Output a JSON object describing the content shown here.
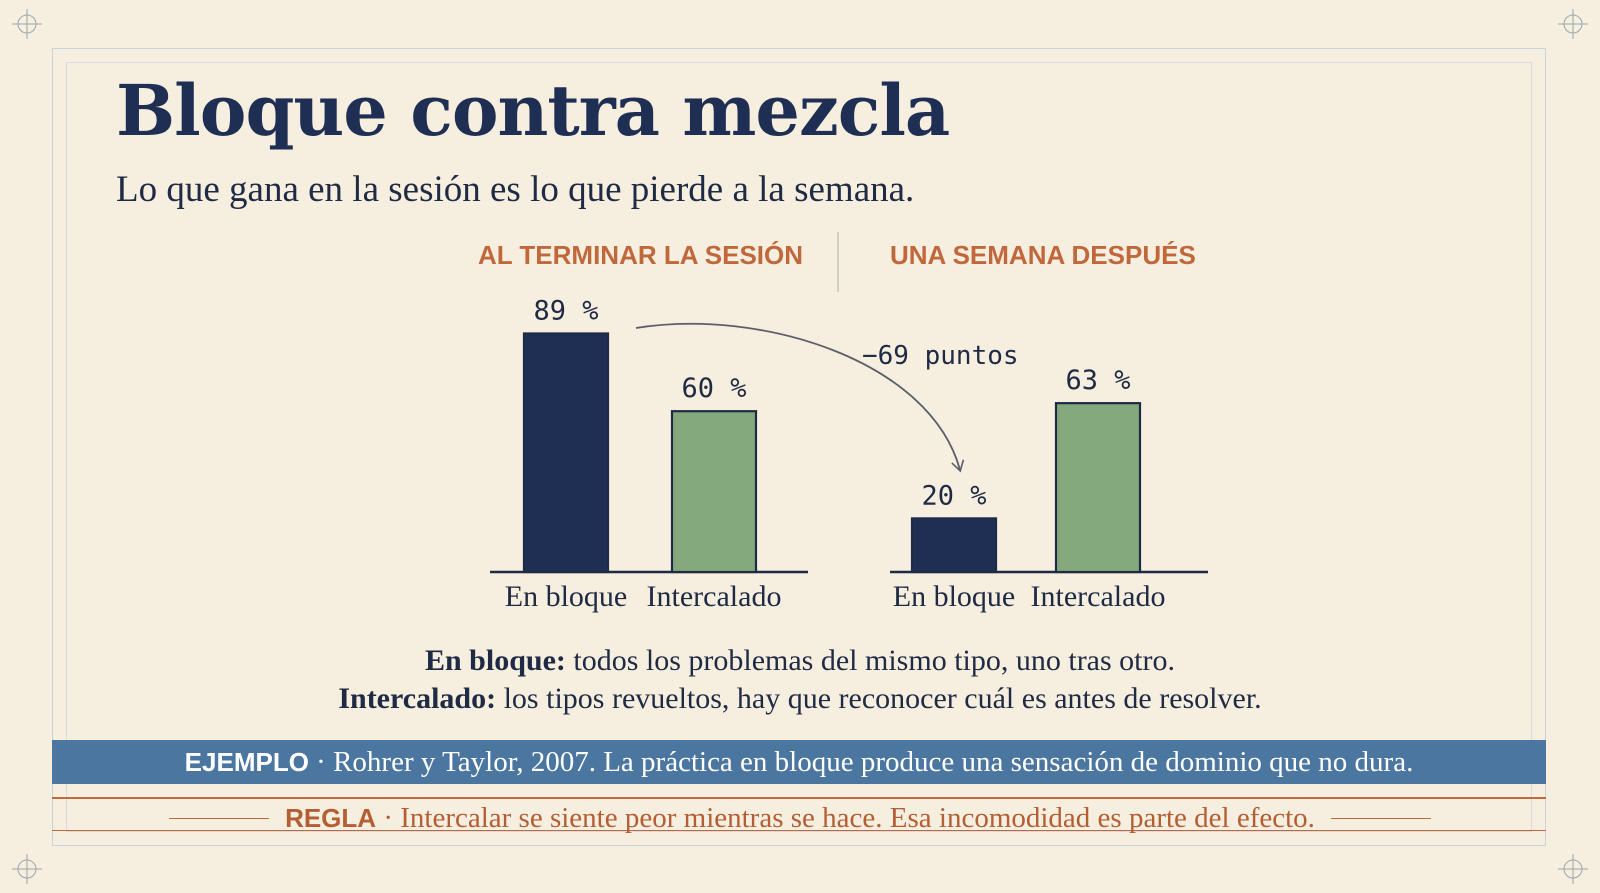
{
  "title": "Bloque contra mezcla",
  "subtitle": "Lo que gana en la sesión es lo que pierde a la semana.",
  "colors": {
    "block": "#1f2f54",
    "interleaved": "#84a97c",
    "accent": "#c0683c",
    "band": "#4b76a0"
  },
  "chart_data": [
    {
      "type": "bar",
      "title": "AL TERMINAR LA SESIÓN",
      "categories": [
        "En bloque",
        "Intercalado"
      ],
      "values": [
        89,
        60
      ],
      "data_labels": [
        "89 %",
        "60 %"
      ],
      "ylim": [
        0,
        100
      ]
    },
    {
      "type": "bar",
      "title": "UNA SEMANA DESPUÉS",
      "categories": [
        "En bloque",
        "Intercalado"
      ],
      "values": [
        20,
        63
      ],
      "data_labels": [
        "20 %",
        "63 %"
      ],
      "ylim": [
        0,
        100
      ]
    }
  ],
  "annotation": "−69 puntos",
  "definitions": [
    {
      "term": "En bloque:",
      "text": " todos los problemas del mismo tipo, uno tras otro."
    },
    {
      "term": "Intercalado:",
      "text": " los tipos revueltos, hay que reconocer cuál es antes de resolver."
    }
  ],
  "example": {
    "tag": "EJEMPLO",
    "sep": " · ",
    "text": "Rohrer y Taylor, 2007. La práctica en bloque produce una sensación de dominio que no dura."
  },
  "rule": {
    "tag": "REGLA",
    "sep": " · ",
    "text": "Intercalar se siente peor mientras se hace. Esa incomodidad es parte del efecto."
  }
}
